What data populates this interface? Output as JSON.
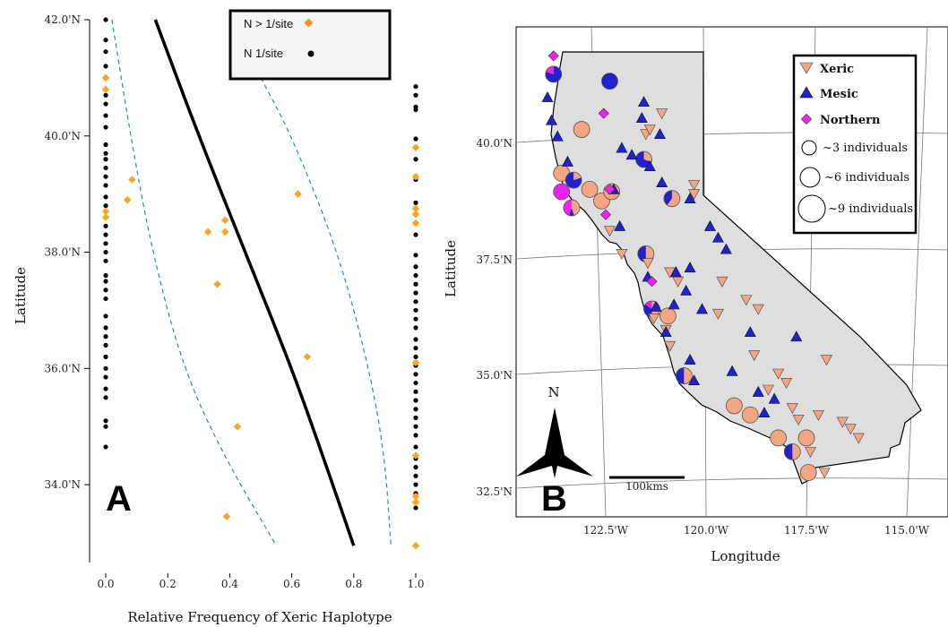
{
  "chart_data": [
    {
      "type": "scatter",
      "panel_label": "A",
      "xlabel": "Relative Frequency of Xeric Haplotype",
      "ylabel": "Latitude",
      "xlim": [
        -0.02,
        1.02
      ],
      "ylim": [
        32.5,
        42.1
      ],
      "xticks": [
        0.0,
        0.2,
        0.4,
        0.6,
        0.8,
        1.0
      ],
      "xtick_labels": [
        "0.0",
        "0.2",
        "0.4",
        "0.6",
        "0.8",
        "1.0"
      ],
      "yticks": [
        34.0,
        36.0,
        38.0,
        40.0,
        42.0
      ],
      "ytick_labels": [
        "34.0'N",
        "36.0'N",
        "38.0'N",
        "40.0'N",
        "42.0'N"
      ],
      "legend": {
        "placement": "top-right",
        "entries": [
          {
            "label": "N > 1/site",
            "marker": "diamond",
            "color": "#f0902a"
          },
          {
            "label": "N  1/site",
            "marker": "circle",
            "color": "#000000"
          }
        ]
      },
      "colors": {
        "multi": "#f5a623",
        "single": "#000000",
        "fit": "#000000",
        "ci": "#2b8aa8"
      },
      "series": [
        {
          "name": "N > 1/site",
          "marker": "diamond",
          "points": [
            [
              0.0,
              41.0
            ],
            [
              0.0,
              40.8
            ],
            [
              0.0,
              38.7
            ],
            [
              0.0,
              38.6
            ],
            [
              0.085,
              39.25
            ],
            [
              0.07,
              38.9
            ],
            [
              0.33,
              38.35
            ],
            [
              0.385,
              38.55
            ],
            [
              0.385,
              38.35
            ],
            [
              0.36,
              37.45
            ],
            [
              0.62,
              39.0
            ],
            [
              0.65,
              36.2
            ],
            [
              0.425,
              35.0
            ],
            [
              0.39,
              33.45
            ],
            [
              1.0,
              39.8
            ],
            [
              1.0,
              39.3
            ],
            [
              1.0,
              38.75
            ],
            [
              1.0,
              38.65
            ],
            [
              1.0,
              38.5
            ],
            [
              1.0,
              36.1
            ],
            [
              1.0,
              34.5
            ],
            [
              1.0,
              33.8
            ],
            [
              1.0,
              33.7
            ],
            [
              1.0,
              32.95
            ]
          ]
        },
        {
          "name": "N  1/site",
          "marker": "circle",
          "points": [
            [
              0.0,
              42.0
            ],
            [
              0.0,
              41.65
            ],
            [
              0.0,
              41.45
            ],
            [
              0.0,
              41.2
            ],
            [
              0.0,
              40.7
            ],
            [
              0.0,
              40.55
            ],
            [
              0.0,
              40.35
            ],
            [
              0.0,
              40.15
            ],
            [
              0.0,
              39.85
            ],
            [
              0.0,
              39.7
            ],
            [
              0.0,
              39.6
            ],
            [
              0.0,
              39.45
            ],
            [
              0.0,
              39.3
            ],
            [
              0.0,
              39.15
            ],
            [
              0.0,
              38.95
            ],
            [
              0.0,
              38.8
            ],
            [
              0.0,
              38.45
            ],
            [
              0.0,
              38.3
            ],
            [
              0.0,
              38.15
            ],
            [
              0.0,
              38.0
            ],
            [
              0.0,
              37.85
            ],
            [
              0.0,
              37.6
            ],
            [
              0.0,
              37.5
            ],
            [
              0.0,
              37.35
            ],
            [
              0.0,
              37.2
            ],
            [
              0.0,
              36.9
            ],
            [
              0.0,
              36.7
            ],
            [
              0.0,
              36.55
            ],
            [
              0.0,
              36.4
            ],
            [
              0.0,
              36.2
            ],
            [
              0.0,
              36.0
            ],
            [
              0.0,
              35.85
            ],
            [
              0.0,
              35.65
            ],
            [
              0.0,
              35.5
            ],
            [
              0.0,
              35.1
            ],
            [
              0.0,
              35.0
            ],
            [
              0.0,
              34.65
            ],
            [
              1.0,
              40.85
            ],
            [
              1.0,
              40.7
            ],
            [
              1.0,
              40.5
            ],
            [
              1.0,
              40.45
            ],
            [
              1.0,
              39.95
            ],
            [
              1.0,
              39.6
            ],
            [
              1.0,
              39.25
            ],
            [
              1.0,
              38.85
            ],
            [
              1.0,
              38.3
            ],
            [
              1.0,
              37.95
            ],
            [
              1.0,
              37.75
            ],
            [
              1.0,
              37.6
            ],
            [
              1.0,
              37.45
            ],
            [
              1.0,
              37.3
            ],
            [
              1.0,
              37.15
            ],
            [
              1.0,
              37.0
            ],
            [
              1.0,
              36.85
            ],
            [
              1.0,
              36.7
            ],
            [
              1.0,
              36.5
            ],
            [
              1.0,
              36.35
            ],
            [
              1.0,
              36.2
            ],
            [
              1.0,
              36.05
            ],
            [
              1.0,
              35.9
            ],
            [
              1.0,
              35.75
            ],
            [
              1.0,
              35.6
            ],
            [
              1.0,
              35.45
            ],
            [
              1.0,
              35.3
            ],
            [
              1.0,
              35.15
            ],
            [
              1.0,
              35.0
            ],
            [
              1.0,
              34.85
            ],
            [
              1.0,
              34.65
            ],
            [
              1.0,
              34.45
            ],
            [
              1.0,
              34.3
            ],
            [
              1.0,
              34.15
            ],
            [
              1.0,
              34.0
            ],
            [
              1.0,
              33.85
            ],
            [
              1.0,
              33.6
            ]
          ]
        }
      ],
      "fit_line": [
        [
          0.16,
          42.0
        ],
        [
          0.3,
          40.0
        ],
        [
          0.45,
          38.0
        ],
        [
          0.6,
          36.0
        ],
        [
          0.7,
          34.5
        ],
        [
          0.8,
          32.95
        ]
      ],
      "ci_lower": [
        [
          0.02,
          42.0
        ],
        [
          0.08,
          40.0
        ],
        [
          0.15,
          38.0
        ],
        [
          0.25,
          36.0
        ],
        [
          0.38,
          34.5
        ],
        [
          0.55,
          32.95
        ]
      ],
      "ci_upper": [
        [
          0.5,
          41.0
        ],
        [
          0.6,
          40.0
        ],
        [
          0.75,
          38.0
        ],
        [
          0.85,
          36.0
        ],
        [
          0.9,
          34.5
        ],
        [
          0.92,
          32.95
        ]
      ]
    },
    {
      "type": "map",
      "panel_label": "B",
      "xlabel": "Longitude",
      "ylabel": "Latitude",
      "xtick_labels": [
        "122.5'W",
        "120.0'W",
        "117.5'W",
        "115.0'W"
      ],
      "ytick_labels": [
        "32.5'N",
        "35.0'N",
        "37.5'N",
        "40.0'N"
      ],
      "north_label": "N",
      "scale_label": "100kms",
      "colors": {
        "xeric": "#f4a582",
        "mesic": "#2222cc",
        "northern": "#ee22ee",
        "land": "#dedede"
      },
      "legend": {
        "placement": "top-right",
        "entries": [
          {
            "label": "Xeric",
            "marker": "triangle-down",
            "color": "#f4a582"
          },
          {
            "label": "Mesic",
            "marker": "triangle-up",
            "color": "#2222cc"
          },
          {
            "label": "Northern",
            "marker": "diamond",
            "color": "#ee22ee"
          },
          {
            "label": "~3 individuals",
            "marker": "circle-small"
          },
          {
            "label": "~6 individuals",
            "marker": "circle-medium"
          },
          {
            "label": "~9 individuals",
            "marker": "circle-large"
          }
        ]
      },
      "triangles_xeric": [
        [
          -121.1,
          40.65
        ],
        [
          -121.5,
          40.2
        ],
        [
          -121.4,
          40.3
        ],
        [
          -120.3,
          39.1
        ],
        [
          -120.3,
          38.9
        ],
        [
          -122.4,
          38.1
        ],
        [
          -122.1,
          37.6
        ],
        [
          -121.45,
          37.4
        ],
        [
          -120.9,
          37.2
        ],
        [
          -120.7,
          37.0
        ],
        [
          -119.6,
          37.0
        ],
        [
          -119.0,
          36.6
        ],
        [
          -118.7,
          36.4
        ],
        [
          -119.7,
          36.3
        ],
        [
          -121.3,
          36.2
        ],
        [
          -121.0,
          35.95
        ],
        [
          -120.9,
          35.6
        ],
        [
          -118.8,
          35.4
        ],
        [
          -118.45,
          34.65
        ],
        [
          -117.85,
          34.25
        ],
        [
          -117.7,
          34.0
        ],
        [
          -117.2,
          34.1
        ],
        [
          -116.6,
          33.95
        ],
        [
          -116.4,
          33.8
        ],
        [
          -116.2,
          33.6
        ],
        [
          -117.4,
          33.3
        ],
        [
          -117.05,
          32.85
        ],
        [
          -118.2,
          35.0
        ],
        [
          -118.0,
          34.8
        ],
        [
          -117.0,
          35.3
        ]
      ],
      "triangles_mesic": [
        [
          -123.95,
          41.0
        ],
        [
          -123.85,
          40.5
        ],
        [
          -123.7,
          40.15
        ],
        [
          -123.45,
          39.6
        ],
        [
          -122.1,
          39.9
        ],
        [
          -121.85,
          39.75
        ],
        [
          -121.6,
          40.55
        ],
        [
          -121.55,
          40.9
        ],
        [
          -121.15,
          40.2
        ],
        [
          -121.4,
          39.5
        ],
        [
          -121.1,
          39.15
        ],
        [
          -120.4,
          38.8
        ],
        [
          -122.3,
          39.0
        ],
        [
          -122.15,
          38.2
        ],
        [
          -119.9,
          38.2
        ],
        [
          -119.7,
          37.95
        ],
        [
          -119.5,
          37.7
        ],
        [
          -120.75,
          37.2
        ],
        [
          -121.45,
          37.1
        ],
        [
          -120.4,
          37.3
        ],
        [
          -120.5,
          36.8
        ],
        [
          -120.8,
          36.5
        ],
        [
          -120.1,
          36.4
        ],
        [
          -121.0,
          35.9
        ],
        [
          -120.4,
          35.3
        ],
        [
          -119.35,
          35.05
        ],
        [
          -118.7,
          34.6
        ],
        [
          -118.3,
          34.45
        ],
        [
          -117.75,
          35.8
        ],
        [
          -118.9,
          35.9
        ],
        [
          -121.25,
          36.45
        ],
        [
          -120.3,
          34.85
        ],
        [
          -118.55,
          34.15
        ]
      ],
      "diamonds_northern": [
        [
          -123.8,
          41.9
        ],
        [
          -122.55,
          40.65
        ],
        [
          -122.4,
          39.0
        ],
        [
          -122.5,
          38.45
        ],
        [
          -121.35,
          37.0
        ]
      ],
      "pies": [
        {
          "lon": -123.8,
          "lat": 41.5,
          "xeric": 0.0,
          "mesic": 0.8,
          "northern": 0.2
        },
        {
          "lon": -122.4,
          "lat": 41.35,
          "xeric": 0.0,
          "mesic": 1.0,
          "northern": 0.0
        },
        {
          "lon": -123.1,
          "lat": 40.3,
          "xeric": 1.0,
          "mesic": 0.0,
          "northern": 0.0
        },
        {
          "lon": -121.55,
          "lat": 39.65,
          "xeric": 0.3,
          "mesic": 0.7,
          "northern": 0.0
        },
        {
          "lon": -123.6,
          "lat": 39.35,
          "xeric": 1.0,
          "mesic": 0.0,
          "northern": 0.0
        },
        {
          "lon": -123.3,
          "lat": 39.2,
          "xeric": 0.2,
          "mesic": 0.8,
          "northern": 0.0
        },
        {
          "lon": -122.9,
          "lat": 39.0,
          "xeric": 1.0,
          "mesic": 0.0,
          "northern": 0.0
        },
        {
          "lon": -122.6,
          "lat": 38.75,
          "xeric": 1.0,
          "mesic": 0.0,
          "northern": 0.0
        },
        {
          "lon": -122.35,
          "lat": 38.95,
          "xeric": 1.0,
          "mesic": 0.0,
          "northern": 0.0
        },
        {
          "lon": -123.6,
          "lat": 38.95,
          "xeric": 0.0,
          "mesic": 0.0,
          "northern": 1.0
        },
        {
          "lon": -123.35,
          "lat": 38.6,
          "xeric": 0.45,
          "mesic": 0.1,
          "northern": 0.45
        },
        {
          "lon": -120.85,
          "lat": 38.8,
          "xeric": 0.6,
          "mesic": 0.4,
          "northern": 0.0
        },
        {
          "lon": -121.5,
          "lat": 37.6,
          "xeric": 0.5,
          "mesic": 0.5,
          "northern": 0.0
        },
        {
          "lon": -121.35,
          "lat": 36.4,
          "xeric": 0.5,
          "mesic": 0.35,
          "northern": 0.15
        },
        {
          "lon": -120.95,
          "lat": 36.25,
          "xeric": 1.0,
          "mesic": 0.0,
          "northern": 0.0
        },
        {
          "lon": -120.55,
          "lat": 34.95,
          "xeric": 0.5,
          "mesic": 0.5,
          "northern": 0.0
        },
        {
          "lon": -119.3,
          "lat": 34.3,
          "xeric": 1.0,
          "mesic": 0.0,
          "northern": 0.0
        },
        {
          "lon": -118.9,
          "lat": 34.1,
          "xeric": 1.0,
          "mesic": 0.0,
          "northern": 0.0
        },
        {
          "lon": -118.2,
          "lat": 33.6,
          "xeric": 1.0,
          "mesic": 0.0,
          "northern": 0.0
        },
        {
          "lon": -117.85,
          "lat": 33.3,
          "xeric": 0.5,
          "mesic": 0.5,
          "northern": 0.0
        },
        {
          "lon": -117.5,
          "lat": 33.6,
          "xeric": 1.0,
          "mesic": 0.0,
          "northern": 0.0
        },
        {
          "lon": -117.45,
          "lat": 32.85,
          "xeric": 1.0,
          "mesic": 0.0,
          "northern": 0.0
        }
      ]
    }
  ]
}
